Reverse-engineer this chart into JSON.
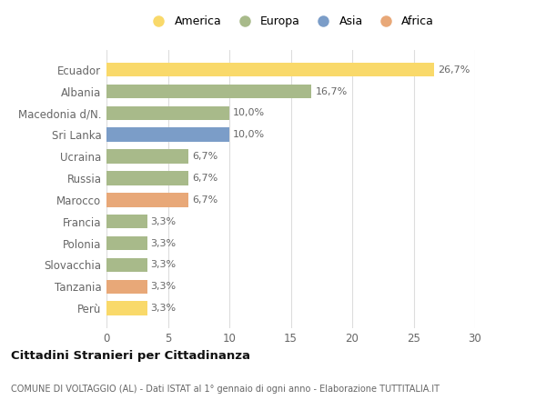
{
  "categories": [
    "Perù",
    "Tanzania",
    "Slovacchia",
    "Polonia",
    "Francia",
    "Marocco",
    "Russia",
    "Ucraina",
    "Sri Lanka",
    "Macedonia d/N.",
    "Albania",
    "Ecuador"
  ],
  "values": [
    3.3,
    3.3,
    3.3,
    3.3,
    3.3,
    6.7,
    6.7,
    6.7,
    10.0,
    10.0,
    16.7,
    26.7
  ],
  "colors": [
    "#F9D96A",
    "#E8A878",
    "#A8BA8A",
    "#A8BA8A",
    "#A8BA8A",
    "#E8A878",
    "#A8BA8A",
    "#A8BA8A",
    "#7B9DC8",
    "#A8BA8A",
    "#A8BA8A",
    "#F9D96A"
  ],
  "labels": [
    "3,3%",
    "3,3%",
    "3,3%",
    "3,3%",
    "3,3%",
    "6,7%",
    "6,7%",
    "6,7%",
    "10,0%",
    "10,0%",
    "16,7%",
    "26,7%"
  ],
  "legend_labels": [
    "America",
    "Europa",
    "Asia",
    "Africa"
  ],
  "legend_colors": [
    "#F9D96A",
    "#A8BA8A",
    "#7B9DC8",
    "#E8A878"
  ],
  "title": "Cittadini Stranieri per Cittadinanza",
  "subtitle": "COMUNE DI VOLTAGGIO (AL) - Dati ISTAT al 1° gennaio di ogni anno - Elaborazione TUTTITALIA.IT",
  "xlim": [
    0,
    30
  ],
  "xticks": [
    0,
    5,
    10,
    15,
    20,
    25,
    30
  ],
  "background_color": "#ffffff",
  "plot_bg_color": "#ffffff"
}
